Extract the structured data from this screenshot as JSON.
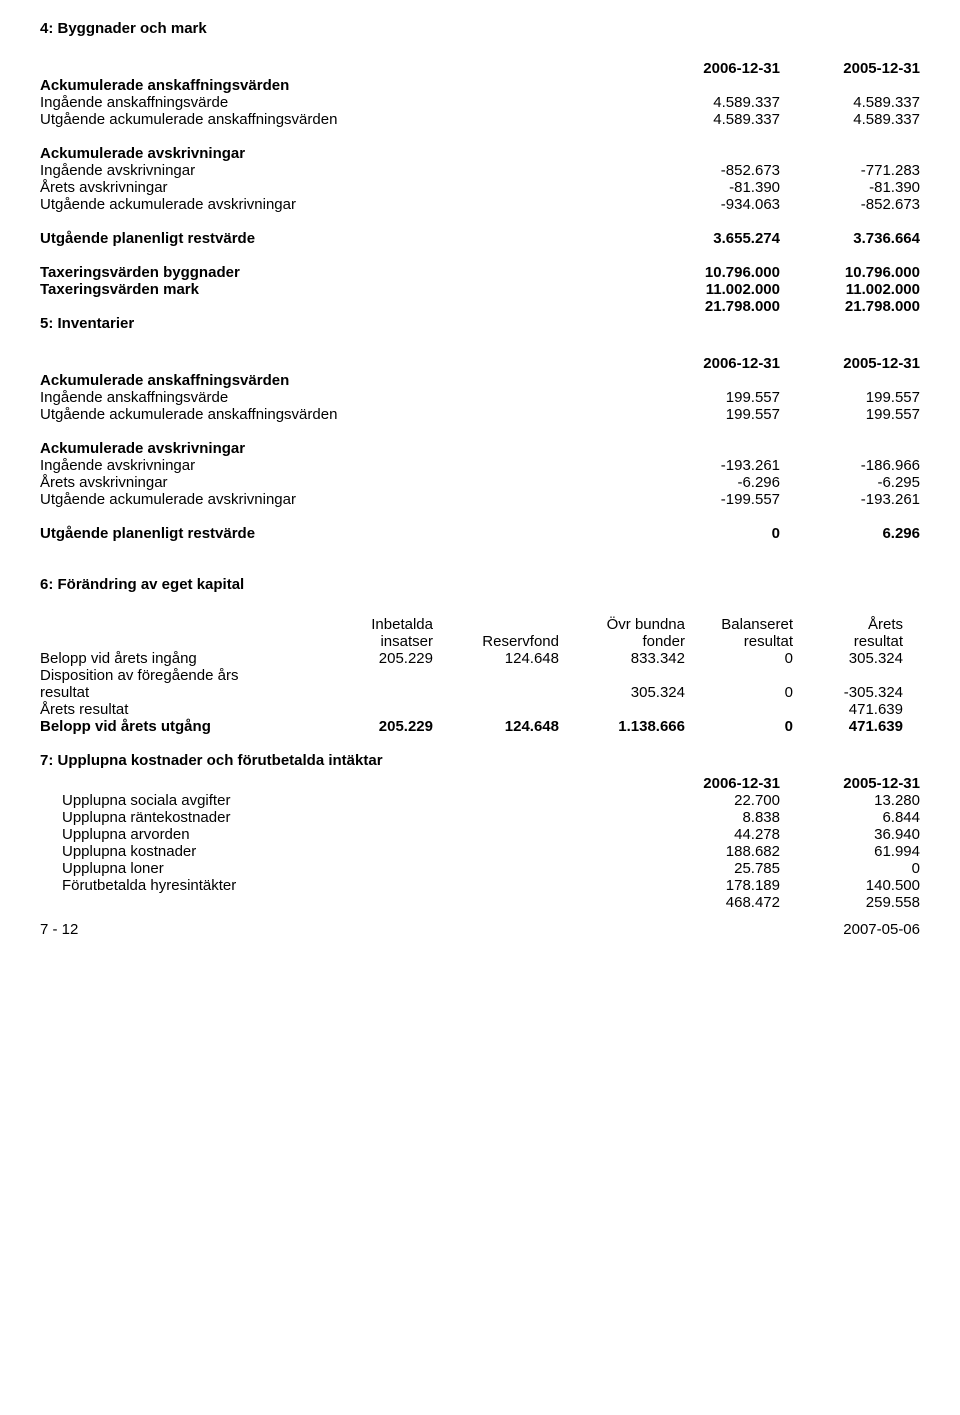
{
  "sec4": {
    "title": "4: Byggnader och mark",
    "header1": "2006-12-31",
    "header2": "2005-12-31",
    "group1_title": "Ackumulerade anskaffningsvärden",
    "rows1": [
      {
        "label": "Ingående anskaffningsvärde",
        "c1": "4.589.337",
        "c2": "4.589.337"
      },
      {
        "label": "Utgående ackumulerade anskaffningsvärden",
        "c1": "4.589.337",
        "c2": "4.589.337"
      }
    ],
    "group2_title": "Ackumulerade avskrivningar",
    "rows2": [
      {
        "label": "Ingående avskrivningar",
        "c1": "-852.673",
        "c2": "-771.283"
      },
      {
        "label": "Årets avskrivningar",
        "c1": "-81.390",
        "c2": "-81.390"
      },
      {
        "label": "Utgående ackumulerade avskrivningar",
        "c1": "-934.063",
        "c2": "-852.673"
      }
    ],
    "restvarde": {
      "label": "Utgående planenligt restvärde",
      "c1": "3.655.274",
      "c2": "3.736.664"
    },
    "tax_rows": [
      {
        "label": "Taxeringsvärden byggnader",
        "c1": "10.796.000",
        "c2": "10.796.000"
      },
      {
        "label": "Taxeringsvärden mark",
        "c1": "11.002.000",
        "c2": "11.002.000"
      },
      {
        "label": "",
        "c1": "21.798.000",
        "c2": "21.798.000"
      }
    ]
  },
  "sec5": {
    "title": "5: Inventarier",
    "header1": "2006-12-31",
    "header2": "2005-12-31",
    "group1_title": "Ackumulerade anskaffningsvärden",
    "rows1": [
      {
        "label": "Ingående anskaffningsvärde",
        "c1": "199.557",
        "c2": "199.557"
      },
      {
        "label": "Utgående ackumulerade anskaffningsvärden",
        "c1": "199.557",
        "c2": "199.557"
      }
    ],
    "group2_title": "Ackumulerade avskrivningar",
    "rows2": [
      {
        "label": "Ingående avskrivningar",
        "c1": "-193.261",
        "c2": "-186.966"
      },
      {
        "label": "Årets avskrivningar",
        "c1": "-6.296",
        "c2": "-6.295"
      },
      {
        "label": "Utgående ackumulerade avskrivningar",
        "c1": "-199.557",
        "c2": "-193.261"
      }
    ],
    "restvarde": {
      "label": "Utgående planenligt restvärde",
      "c1": "0",
      "c2": "6.296"
    }
  },
  "sec6": {
    "title": "6: Förändring av eget kapital",
    "headers": {
      "h1a": "Inbetalda",
      "h1b": "insatser",
      "h2a": "",
      "h2b": "Reservfond",
      "h3a": "Övr bundna",
      "h3b": "fonder",
      "h4a": "Balanseret",
      "h4b": "resultat",
      "h5a": "Årets",
      "h5b": "resultat"
    },
    "rows": [
      {
        "label": "Belopp vid årets ingång",
        "c1": "205.229",
        "c2": "124.648",
        "c3": "833.342",
        "c4": "0",
        "c5": "305.324"
      },
      {
        "label": "Disposition av föregående års",
        "c1": "",
        "c2": "",
        "c3": "",
        "c4": "",
        "c5": ""
      },
      {
        "label": "resultat",
        "c1": "",
        "c2": "",
        "c3": "305.324",
        "c4": "0",
        "c5": "-305.324"
      },
      {
        "label": "Årets resultat",
        "c1": "",
        "c2": "",
        "c3": "",
        "c4": "",
        "c5": "471.639"
      }
    ],
    "total": {
      "label": "Belopp vid årets utgång",
      "c1": "205.229",
      "c2": "124.648",
      "c3": "1.138.666",
      "c4": "0",
      "c5": "471.639"
    }
  },
  "sec7": {
    "title": "7: Upplupna kostnader och förutbetalda intäktar",
    "header1": "2006-12-31",
    "header2": "2005-12-31",
    "rows": [
      {
        "label": "Upplupna sociala avgifter",
        "c1": "22.700",
        "c2": "13.280"
      },
      {
        "label": "Upplupna räntekostnader",
        "c1": "8.838",
        "c2": "6.844"
      },
      {
        "label": "Upplupna arvorden",
        "c1": "44.278",
        "c2": "36.940"
      },
      {
        "label": "Upplupna kostnader",
        "c1": "188.682",
        "c2": "61.994"
      },
      {
        "label": "Upplupna loner",
        "c1": "25.785",
        "c2": "0"
      },
      {
        "label": "Förutbetalda hyresintäkter",
        "c1": "178.189",
        "c2": "140.500"
      },
      {
        "label": "",
        "c1": "468.472",
        "c2": "259.558"
      }
    ]
  },
  "footer": {
    "left": "7 - 12",
    "right": "2007-05-06"
  }
}
